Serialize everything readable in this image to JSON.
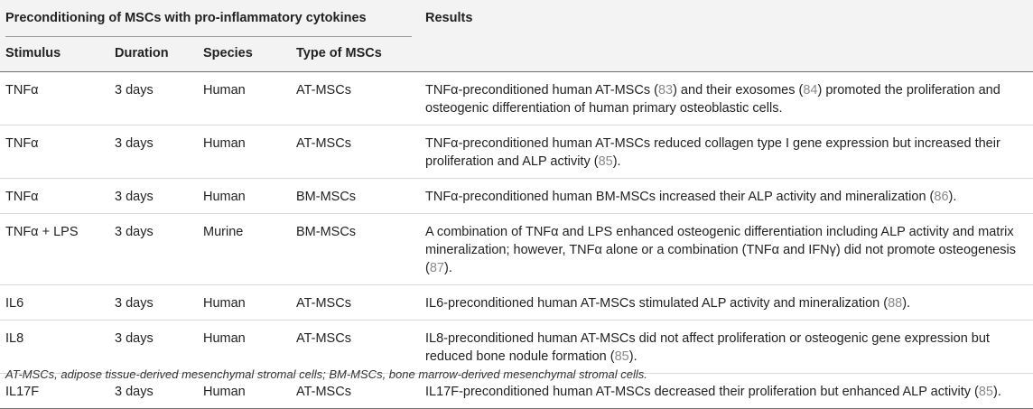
{
  "table": {
    "group_header": "Preconditioning of MSCs with pro-inflammatory cytokines",
    "results_header": "Results",
    "columns": [
      "Stimulus",
      "Duration",
      "Species",
      "Type of MSCs"
    ],
    "rows": [
      {
        "stimulus": "TNFα",
        "duration": "3 days",
        "species": "Human",
        "type": "AT-MSCs",
        "result": [
          {
            "t": "TNFα-preconditioned human AT-MSCs ("
          },
          {
            "t": "83",
            "ref": true
          },
          {
            "t": ") and their exosomes ("
          },
          {
            "t": "84",
            "ref": true
          },
          {
            "t": ") promoted the proliferation and osteogenic differentiation of human primary osteoblastic cells."
          }
        ]
      },
      {
        "stimulus": "TNFα",
        "duration": "3 days",
        "species": "Human",
        "type": "AT-MSCs",
        "result": [
          {
            "t": "TNFα-preconditioned human AT-MSCs reduced collagen type I gene expression but increased their proliferation and ALP activity ("
          },
          {
            "t": "85",
            "ref": true
          },
          {
            "t": ")."
          }
        ]
      },
      {
        "stimulus": "TNFα",
        "duration": "3 days",
        "species": "Human",
        "type": "BM-MSCs",
        "result": [
          {
            "t": "TNFα-preconditioned human BM-MSCs increased their ALP activity and mineralization ("
          },
          {
            "t": "86",
            "ref": true
          },
          {
            "t": ")."
          }
        ]
      },
      {
        "stimulus": "TNFα + LPS",
        "duration": "3 days",
        "species": "Murine",
        "type": "BM-MSCs",
        "result": [
          {
            "t": "A combination of TNFα and LPS enhanced osteogenic differentiation including ALP activity and matrix mineralization; however, TNFα alone or a combination (TNFα and IFNγ) did not promote osteogenesis ("
          },
          {
            "t": "87",
            "ref": true
          },
          {
            "t": ")."
          }
        ]
      },
      {
        "stimulus": "IL6",
        "duration": "3 days",
        "species": "Human",
        "type": "AT-MSCs",
        "result": [
          {
            "t": "IL6-preconditioned human AT-MSCs stimulated ALP activity and mineralization ("
          },
          {
            "t": "88",
            "ref": true
          },
          {
            "t": ")."
          }
        ]
      },
      {
        "stimulus": "IL8",
        "duration": "3 days",
        "species": "Human",
        "type": "AT-MSCs",
        "result": [
          {
            "t": "IL8-preconditioned human AT-MSCs did not affect proliferation or osteogenic gene expression but reduced bone nodule formation ("
          },
          {
            "t": "85",
            "ref": true
          },
          {
            "t": ")."
          }
        ]
      },
      {
        "stimulus": "IL17F",
        "duration": "3 days",
        "species": "Human",
        "type": "AT-MSCs",
        "result": [
          {
            "t": "IL17F-preconditioned human AT-MSCs decreased their proliferation but enhanced ALP activity ("
          },
          {
            "t": "85",
            "ref": true
          },
          {
            "t": ")."
          }
        ]
      }
    ],
    "footnote": "AT-MSCs, adipose tissue-derived mesenchymal stromal cells; BM-MSCs, bone marrow-derived mesenchymal stromal cells."
  },
  "colors": {
    "header_bg": "#f3f3f3",
    "text": "#222222",
    "reference_link": "#8a8a8a",
    "row_divider": "#d9d9d9"
  }
}
